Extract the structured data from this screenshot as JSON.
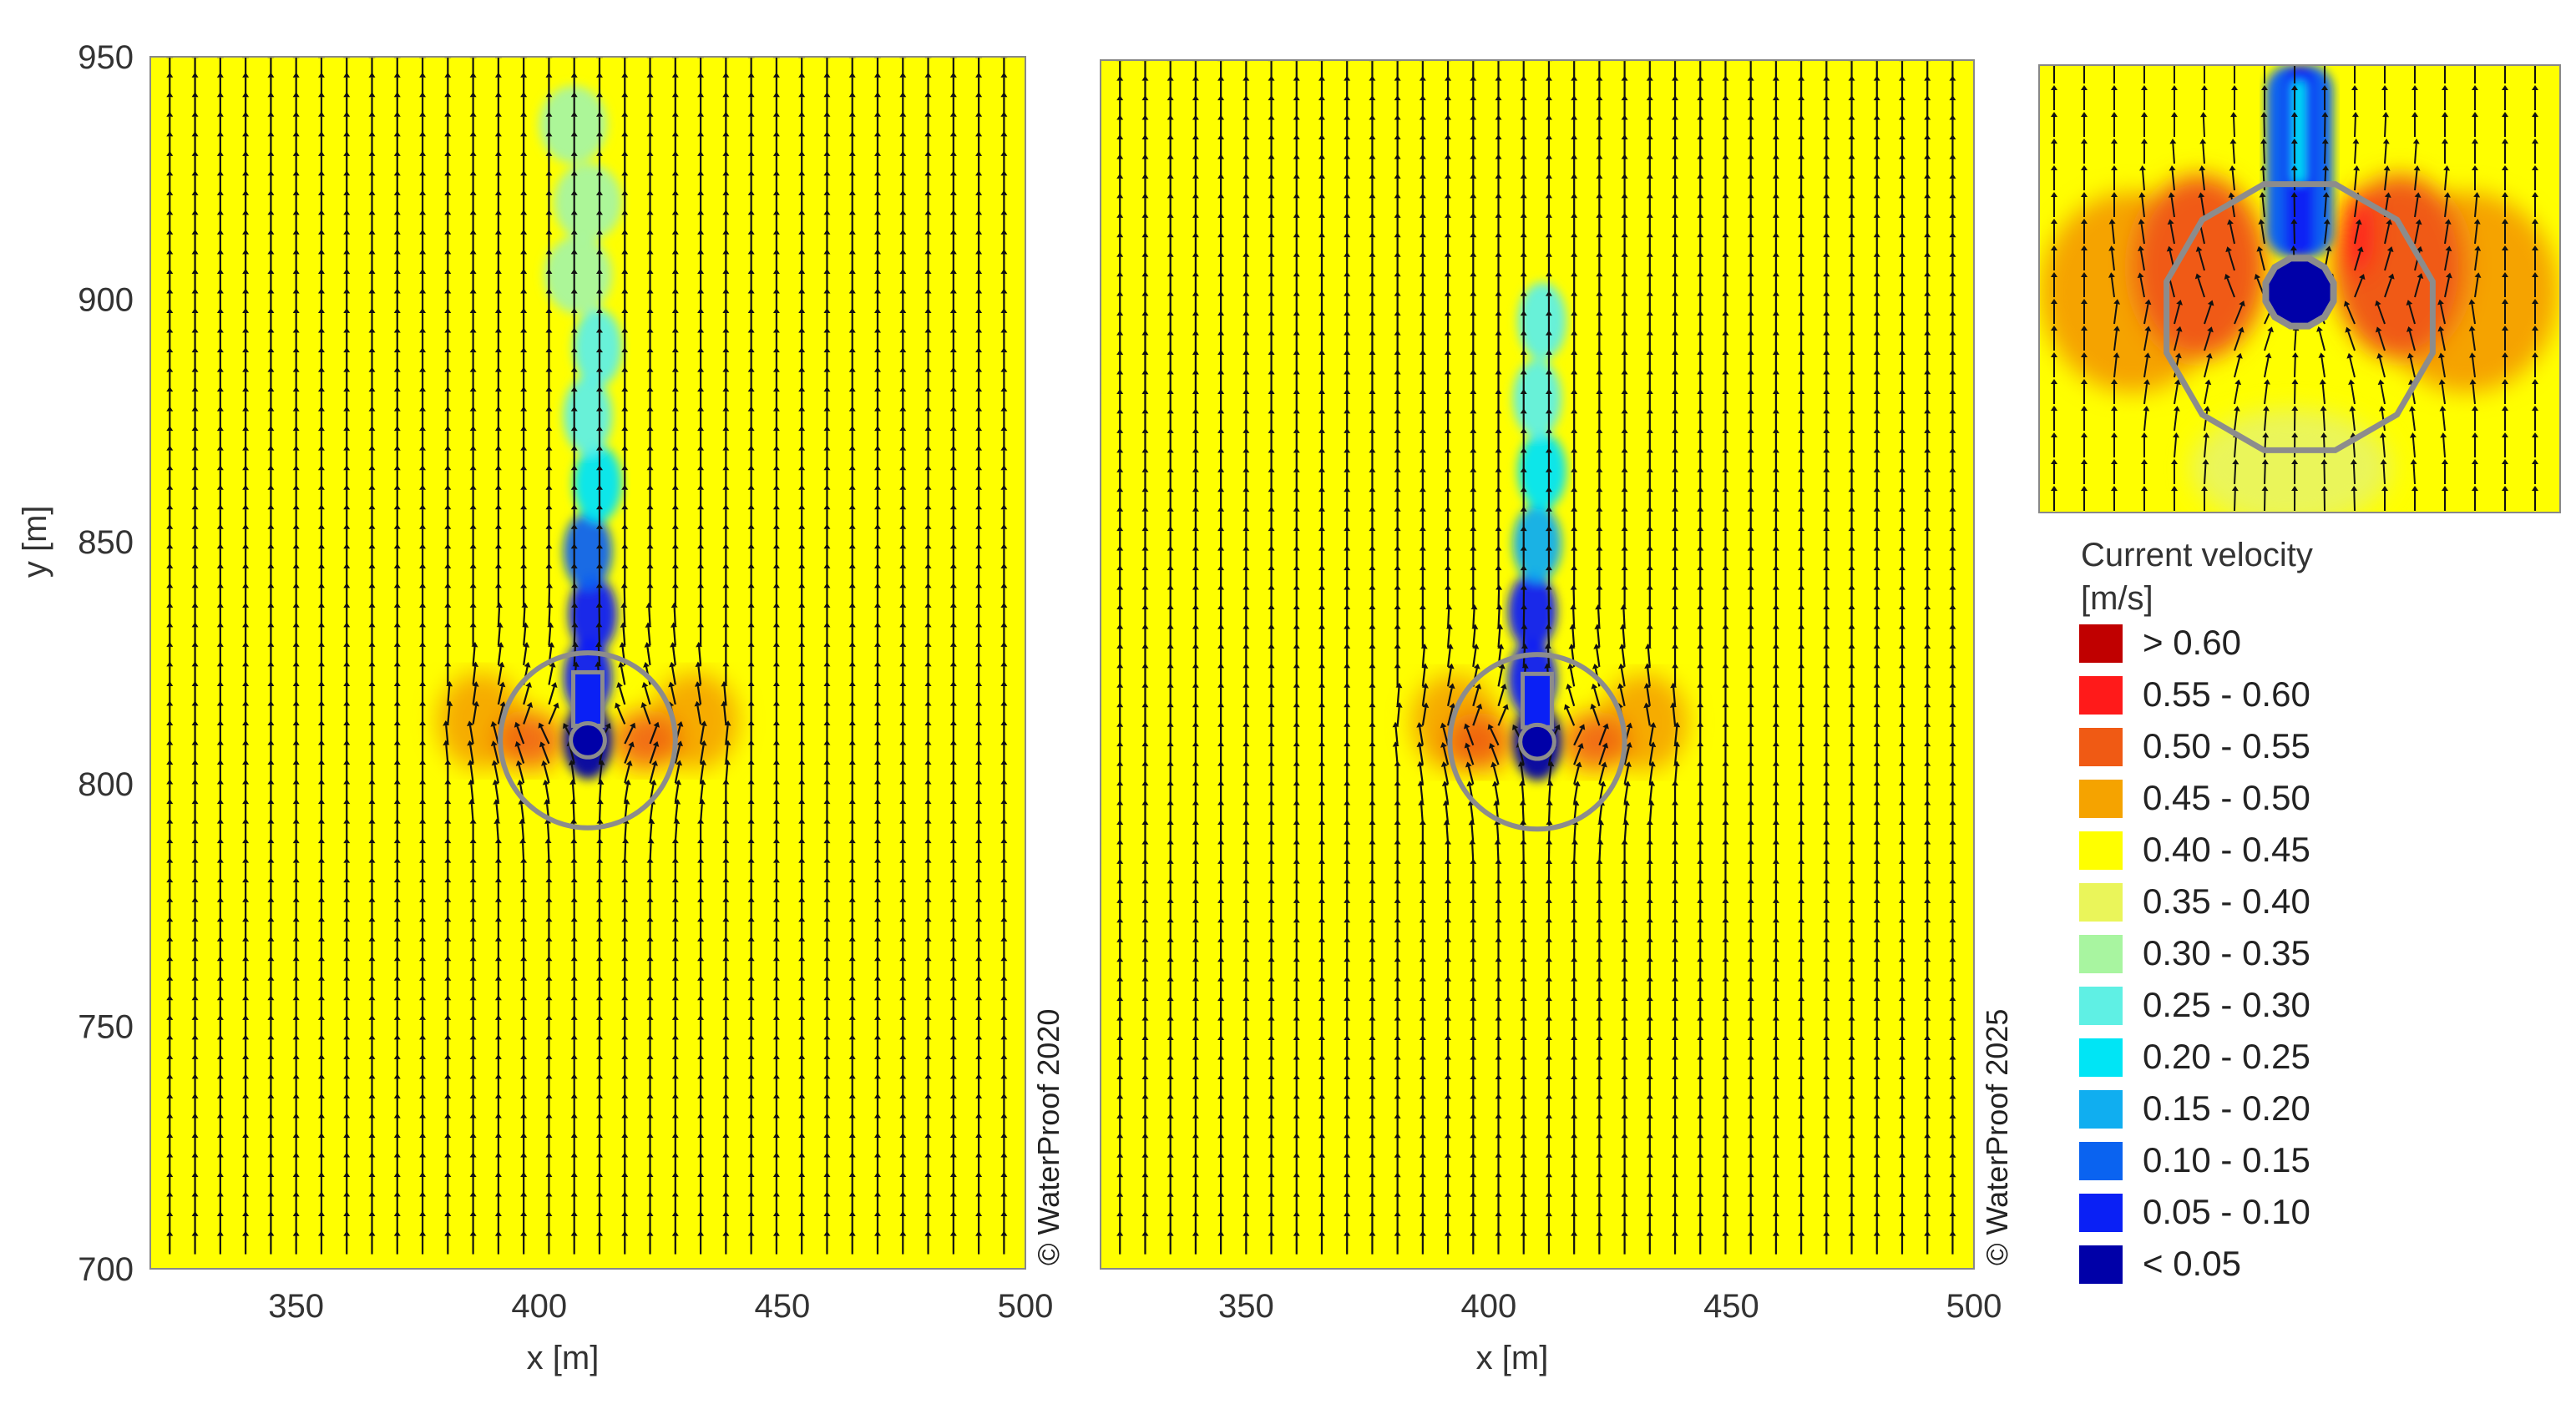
{
  "chart_data": [
    {
      "type": "heatmap",
      "panel": "left",
      "xlabel": "x [m]",
      "ylabel": "y [m]",
      "xlim": [
        320,
        500
      ],
      "ylim": [
        700,
        950
      ],
      "x_ticks": [
        350,
        400,
        450,
        500
      ],
      "y_ticks": [
        700,
        750,
        800,
        850,
        900,
        950
      ],
      "copyright": "© WaterProof 2020",
      "wake": [
        {
          "x": 410,
          "y": 809,
          "v": "< 0.05"
        },
        {
          "x": 410,
          "y": 822,
          "v": "0.05 - 0.10"
        },
        {
          "x": 411,
          "y": 835,
          "v": "0.05 - 0.10"
        },
        {
          "x": 410,
          "y": 848,
          "v": "0.10 - 0.15"
        },
        {
          "x": 412,
          "y": 862,
          "v": "0.20 - 0.25"
        },
        {
          "x": 410,
          "y": 876,
          "v": "0.25 - 0.30"
        },
        {
          "x": 412,
          "y": 890,
          "v": "0.25 - 0.30"
        },
        {
          "x": 408,
          "y": 905,
          "v": "0.30 - 0.35"
        },
        {
          "x": 410,
          "y": 920,
          "v": "0.30 - 0.35"
        },
        {
          "x": 407,
          "y": 936,
          "v": "0.30 - 0.35"
        }
      ],
      "accelerated_zone": {
        "x_range": [
          380,
          440
        ],
        "y_range": [
          800,
          826
        ]
      }
    },
    {
      "type": "heatmap",
      "panel": "middle",
      "xlabel": "x [m]",
      "xlim": [
        320,
        500
      ],
      "ylim": [
        700,
        950
      ],
      "x_ticks": [
        350,
        400,
        450,
        500
      ],
      "copyright": "© WaterProof 2025",
      "wake": [
        {
          "x": 410,
          "y": 809,
          "v": "< 0.05"
        },
        {
          "x": 409,
          "y": 822,
          "v": "0.05 - 0.10"
        },
        {
          "x": 409,
          "y": 836,
          "v": "0.05 - 0.10"
        },
        {
          "x": 410,
          "y": 850,
          "v": "0.15 - 0.20"
        },
        {
          "x": 411,
          "y": 865,
          "v": "0.20 - 0.25"
        },
        {
          "x": 410,
          "y": 880,
          "v": "0.25 - 0.30"
        },
        {
          "x": 411,
          "y": 896,
          "v": "0.25 - 0.30"
        }
      ],
      "accelerated_zone": {
        "x_range": [
          385,
          440
        ],
        "y_range": [
          800,
          826
        ]
      }
    },
    {
      "type": "heatmap",
      "panel": "inset",
      "description_of_scale": "zoom of structure",
      "legend": {
        "title_lines": [
          "Current velocity",
          "[m/s]"
        ],
        "placement": "right",
        "entries": [
          {
            "label": "> 0.60",
            "color": "#c00000"
          },
          {
            "label": "0.55 - 0.60",
            "color": "#ff1a1a"
          },
          {
            "label": "0.50 - 0.55",
            "color": "#f05a14"
          },
          {
            "label": "0.45 - 0.50",
            "color": "#f5a300"
          },
          {
            "label": "0.40 - 0.45",
            "color": "#ffff00"
          },
          {
            "label": "0.35 - 0.40",
            "color": "#eaf55a"
          },
          {
            "label": "0.30 - 0.35",
            "color": "#a8f5a0"
          },
          {
            "label": "0.25 - 0.30",
            "color": "#5ff0e4"
          },
          {
            "label": "0.20 - 0.25",
            "color": "#00e5f5"
          },
          {
            "label": "0.15 - 0.20",
            "color": "#10aef0"
          },
          {
            "label": "0.10 - 0.15",
            "color": "#0a63f0"
          },
          {
            "label": "0.05 - 0.10",
            "color": "#0a20f5"
          },
          {
            "label": "< 0.05",
            "color": "#0000a8"
          }
        ]
      }
    }
  ],
  "colors": {
    "background_flow": "#ffff00",
    "structure_outline": "#8c8c8c",
    "arrow": "#111111"
  }
}
